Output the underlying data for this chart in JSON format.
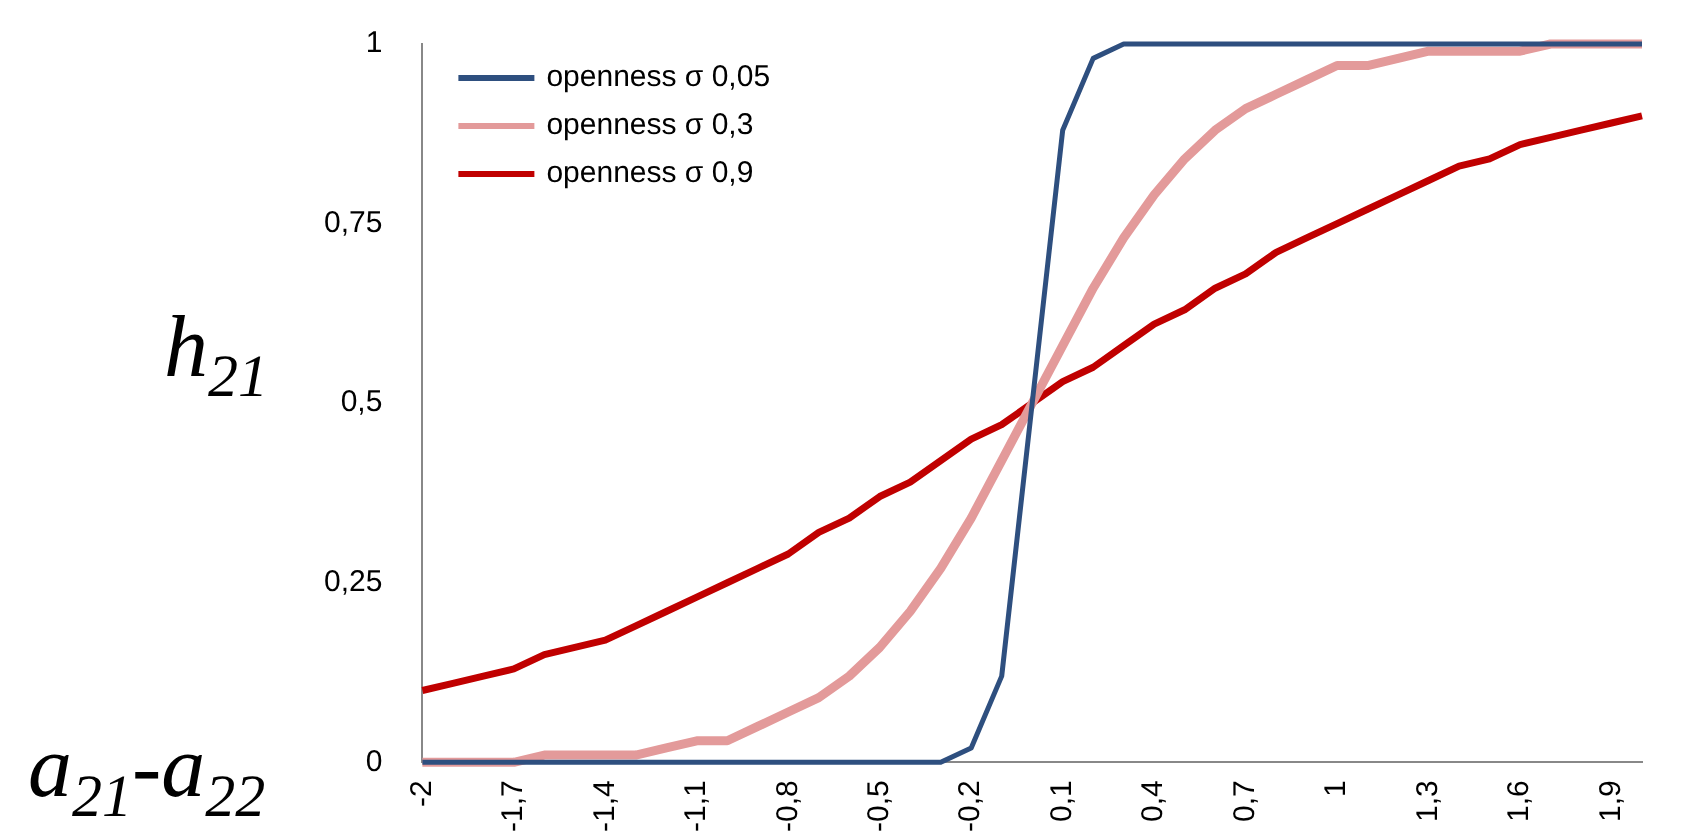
{
  "chart_data": {
    "type": "line",
    "xlabel": "a$_{21}$-a$_{22}$",
    "ylabel": "h$_{21}$",
    "categories": [
      "-2",
      null,
      null,
      "-1,7",
      null,
      null,
      "-1,4",
      null,
      null,
      "-1,1",
      null,
      null,
      "-0,8",
      null,
      null,
      "-0,5",
      null,
      null,
      "-0,2",
      null,
      null,
      "0,1",
      null,
      null,
      "0,4",
      null,
      null,
      "0,7",
      null,
      null,
      "1",
      null,
      null,
      "1,3",
      null,
      null,
      "1,6",
      null,
      null,
      "1,9",
      null
    ],
    "series": [
      {
        "name": "openness σ 0,05",
        "color": "#2e4f7f",
        "values": [
          0,
          0,
          0,
          0,
          0,
          0,
          0,
          0,
          0,
          0,
          0,
          0,
          0,
          0,
          0,
          0,
          0,
          0,
          0.02,
          0.12,
          0.5,
          0.88,
          0.98,
          1,
          1,
          1,
          1,
          1,
          1,
          1,
          1,
          1,
          1,
          1,
          1,
          1,
          1,
          1,
          1,
          1,
          1
        ]
      },
      {
        "name": "openness σ 0,3",
        "color": "#e39a9a",
        "values": [
          0,
          0,
          0,
          0,
          0.01,
          0.01,
          0.01,
          0.01,
          0.02,
          0.03,
          0.03,
          0.05,
          0.07,
          0.09,
          0.12,
          0.16,
          0.21,
          0.27,
          0.34,
          0.42,
          0.5,
          0.58,
          0.66,
          0.73,
          0.79,
          0.84,
          0.88,
          0.91,
          0.93,
          0.95,
          0.97,
          0.97,
          0.98,
          0.99,
          0.99,
          0.99,
          0.99,
          1,
          1,
          1,
          1
        ]
      },
      {
        "name": "openness σ 0,9",
        "color": "#c00000",
        "values": [
          0.1,
          0.11,
          0.12,
          0.13,
          0.15,
          0.16,
          0.17,
          0.19,
          0.21,
          0.23,
          0.25,
          0.27,
          0.29,
          0.32,
          0.34,
          0.37,
          0.39,
          0.42,
          0.45,
          0.47,
          0.5,
          0.53,
          0.55,
          0.58,
          0.61,
          0.63,
          0.66,
          0.68,
          0.71,
          0.73,
          0.75,
          0.77,
          0.79,
          0.81,
          0.83,
          0.84,
          0.86,
          0.87,
          0.88,
          0.89,
          0.9
        ]
      }
    ],
    "ylim": [
      0,
      1
    ],
    "yticks": [
      {
        "value": 0,
        "label": "0"
      },
      {
        "value": 0.25,
        "label": "0,25"
      },
      {
        "value": 0.5,
        "label": "0,5"
      },
      {
        "value": 0.75,
        "label": "0,75"
      },
      {
        "value": 1,
        "label": "1"
      }
    ],
    "grid": false,
    "legend": "top left",
    "marker": "none",
    "line_style": "solid"
  }
}
